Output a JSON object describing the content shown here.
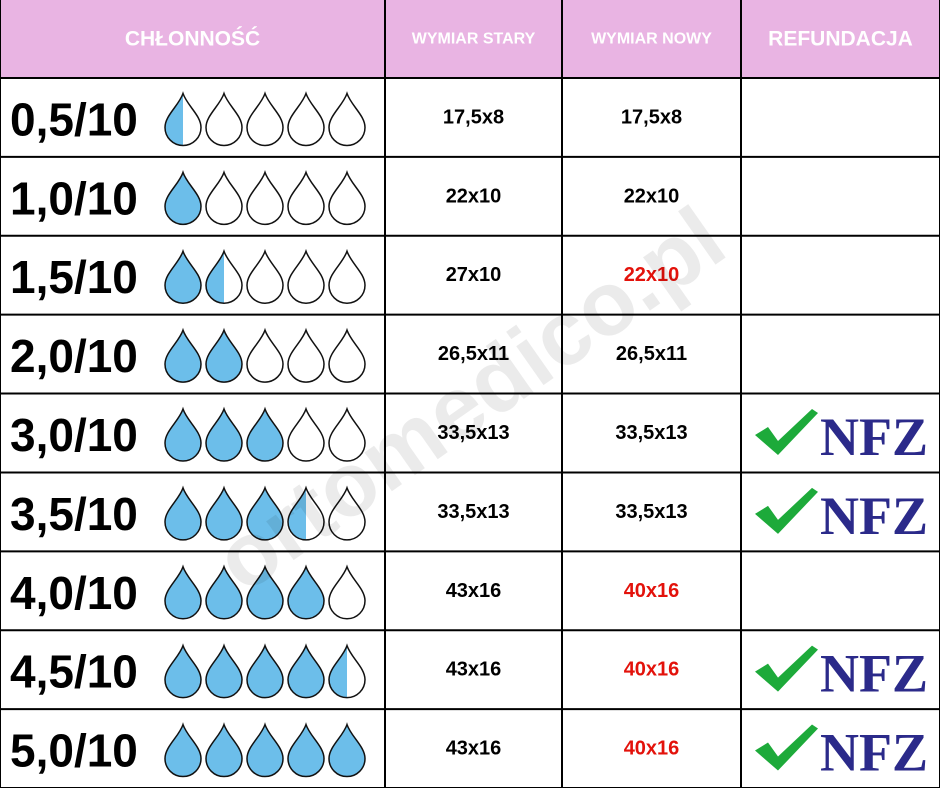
{
  "table": {
    "header": [
      "CHŁONNOŚĆ",
      "WYMIAR STARY",
      "WYMIAR NOWY",
      "REFUNDACJA"
    ],
    "header_color": "#e9b4e3",
    "drop_color": "#6cbeea",
    "changed_color": "#e3120b",
    "rows": [
      {
        "rating": "0,5/10",
        "drops": 0.5,
        "old": "17,5x8",
        "new": "17,5x8",
        "new_changed": false,
        "refund": null
      },
      {
        "rating": "1,0/10",
        "drops": 1,
        "old": "22x10",
        "new": "22x10",
        "new_changed": false,
        "refund": null
      },
      {
        "rating": "1,5/10",
        "drops": 1.5,
        "old": "27x10",
        "new": "22x10",
        "new_changed": true,
        "refund": null
      },
      {
        "rating": "2,0/10",
        "drops": 2,
        "old": "26,5x11",
        "new": "26,5x11",
        "new_changed": false,
        "refund": null
      },
      {
        "rating": "3,0/10",
        "drops": 3,
        "old": "33,5x13",
        "new": "33,5x13",
        "new_changed": false,
        "refund": "NFZ"
      },
      {
        "rating": "3,5/10",
        "drops": 3.5,
        "old": "33,5x13",
        "new": "33,5x13",
        "new_changed": false,
        "refund": "NFZ"
      },
      {
        "rating": "4,0/10",
        "drops": 4,
        "old": "43x16",
        "new": "40x16",
        "new_changed": true,
        "refund": null
      },
      {
        "rating": "4,5/10",
        "drops": 4.5,
        "old": "43x16",
        "new": "40x16",
        "new_changed": true,
        "refund": "NFZ"
      },
      {
        "rating": "5,0/10",
        "drops": 5,
        "old": "43x16",
        "new": "40x16",
        "new_changed": true,
        "refund": "NFZ"
      }
    ]
  },
  "watermark": "ortomedico.pl"
}
